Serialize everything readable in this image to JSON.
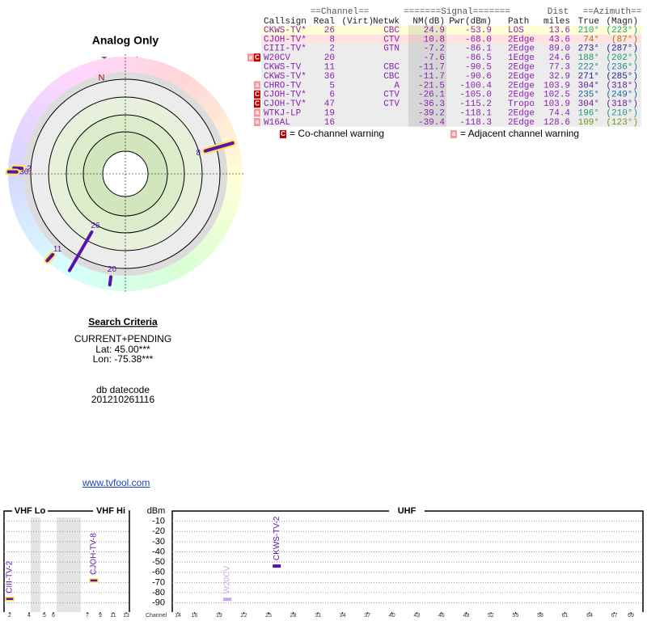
{
  "header": {
    "title": "Analog Only",
    "true_north": "TrueNorth",
    "north": "N"
  },
  "polar": {
    "markers": [
      {
        "label": "26",
        "azimuth": 210,
        "nm": 24.9,
        "color": "#5a12a8"
      },
      {
        "label": "8",
        "azimuth": 74,
        "nm": 10.8,
        "color": "#5a12a8",
        "outline": "#ffe34d"
      },
      {
        "label": "2",
        "azimuth": 273,
        "nm": -7.2,
        "color": "#5a12a8",
        "outline": "#ffe34d"
      },
      {
        "label": "20",
        "azimuth": 188,
        "nm": -7.6,
        "color": "#5a12a8"
      },
      {
        "label": "11",
        "azimuth": 222,
        "nm": -11.7,
        "color": "#5a12a8",
        "outline": "#ffe34d"
      },
      {
        "label": "36",
        "azimuth": 271,
        "nm": -11.7,
        "color": "#5a12a8",
        "outline": "#ffe34d"
      }
    ]
  },
  "table": {
    "group_headers": {
      "channel": "==Channel==",
      "signal": "=======Signal=======",
      "dist": "Dist",
      "azimuth": "==Azimuth=="
    },
    "columns": {
      "callsign": "Callsign",
      "real": "Real",
      "virt": "(Virt)",
      "netwk": "Netwk",
      "nm": "NM(dB)",
      "pwr": "Pwr(dBm)",
      "path": "Path",
      "dist": "miles",
      "az_true": "True",
      "az_magn": "(Magn)"
    },
    "rows": [
      {
        "callsign": "CKWS-TV*",
        "real": "26",
        "netwk": "CBC",
        "nm": "24.9",
        "pwr": "-53.9",
        "path": "LOS",
        "dist": "13.6",
        "az_true": "210°",
        "az_magn": "(223°)",
        "bg": "#ffffd6"
      },
      {
        "callsign": "CJOH-TV*",
        "real": "8",
        "netwk": "CTV",
        "nm": "10.8",
        "pwr": "-68.0",
        "path": "2Edge",
        "dist": "43.6",
        "az_true": "74°",
        "az_magn": "(87°)",
        "bg": "#ffe2e2"
      },
      {
        "callsign": "CIII-TV*",
        "real": "2",
        "netwk": "GTN",
        "nm": "-7.2",
        "pwr": "-86.1",
        "path": "2Edge",
        "dist": "89.0",
        "az_true": "273°",
        "az_magn": "(287°)"
      },
      {
        "callsign": "W20CV",
        "real": "20",
        "nm": "-7.6",
        "pwr": "-86.5",
        "path": "1Edge",
        "dist": "24.6",
        "az_true": "188°",
        "az_magn": "(202°)",
        "warnings": [
          "a",
          "C"
        ]
      },
      {
        "callsign": "CKWS-TV",
        "real": "11",
        "netwk": "CBC",
        "nm": "-11.7",
        "pwr": "-90.5",
        "path": "2Edge",
        "dist": "77.3",
        "az_true": "222°",
        "az_magn": "(236°)"
      },
      {
        "callsign": "CKWS-TV*",
        "real": "36",
        "netwk": "CBC",
        "nm": "-11.7",
        "pwr": "-90.6",
        "path": "2Edge",
        "dist": "32.9",
        "az_true": "271°",
        "az_magn": "(285°)"
      },
      {
        "callsign": "CHRO-TV",
        "real": "5",
        "netwk": "A",
        "nm": "-21.5",
        "pwr": "-100.4",
        "path": "2Edge",
        "dist": "103.9",
        "az_true": "304°",
        "az_magn": "(318°)",
        "warnings": [
          "a"
        ]
      },
      {
        "callsign": "CJOH-TV*",
        "real": "6",
        "netwk": "CTV",
        "nm": "-26.1",
        "pwr": "-105.0",
        "path": "2Edge",
        "dist": "102.5",
        "az_true": "235°",
        "az_magn": "(249°)",
        "warnings": [
          "C"
        ]
      },
      {
        "callsign": "CJOH-TV*",
        "real": "47",
        "netwk": "CTV",
        "nm": "-36.3",
        "pwr": "-115.2",
        "path": "Tropo",
        "dist": "103.9",
        "az_true": "304°",
        "az_magn": "(318°)",
        "warnings": [
          "C"
        ]
      },
      {
        "callsign": "WTKJ-LP",
        "real": "19",
        "nm": "-39.2",
        "pwr": "-118.1",
        "path": "2Edge",
        "dist": "74.4",
        "az_true": "196°",
        "az_magn": "(210°)",
        "warnings": [
          "a"
        ]
      },
      {
        "callsign": "W16AL",
        "real": "16",
        "nm": "-39.4",
        "pwr": "-118.3",
        "path": "2Edge",
        "dist": "128.6",
        "az_true": "109°",
        "az_magn": "(123°)",
        "warnings": [
          "a"
        ]
      }
    ]
  },
  "legend": {
    "co_icon": "C",
    "co_text": "= Co-channel warning",
    "co_color": "#c00000",
    "adj_icon": "a",
    "adj_text": "= Adjacent channel warning",
    "adj_color": "#f29a9a"
  },
  "criteria": {
    "title": "Search Criteria",
    "mode": "CURRENT+PENDING",
    "lat": "Lat: 45.00***",
    "lon": "Lon: -75.38***",
    "db_label": "db datecode",
    "db_code": "201210261116"
  },
  "link": "www.tvfool.com",
  "spectrum": {
    "bands": {
      "vhf_lo": "VHF Lo",
      "vhf_hi": "VHF Hi",
      "uhf": "UHF"
    },
    "y_label": "dBm",
    "x_label": "Channel",
    "ylim": [
      -99,
      0
    ],
    "yticks": [
      -10,
      -20,
      -30,
      -40,
      -50,
      -60,
      -70,
      -80,
      -90
    ],
    "vhf_xticks": [
      2,
      4,
      5,
      6,
      7,
      9,
      11,
      13
    ],
    "uhf_xlim": [
      14,
      69
    ],
    "uhf_xticks": [
      14,
      16,
      19,
      22,
      25,
      28,
      31,
      34,
      37,
      40,
      43,
      46,
      49,
      52,
      55,
      58,
      61,
      64,
      67,
      69
    ],
    "stations": [
      {
        "name": "CIII-TV-2",
        "channel": 2,
        "power": -86.1,
        "color": "#5a12a8",
        "outline": "#ffe34d"
      },
      {
        "name": "CJOH-TV-8",
        "channel": 8,
        "power": -68.0,
        "color": "#5a12a8",
        "outline": "#ffe34d"
      },
      {
        "name": "W20CV",
        "channel": 20,
        "power": -86.5,
        "color": "#c9a6e6"
      },
      {
        "name": "CKWS-TV-2",
        "channel": 26,
        "power": -53.9,
        "color": "#5a12a8"
      }
    ]
  }
}
